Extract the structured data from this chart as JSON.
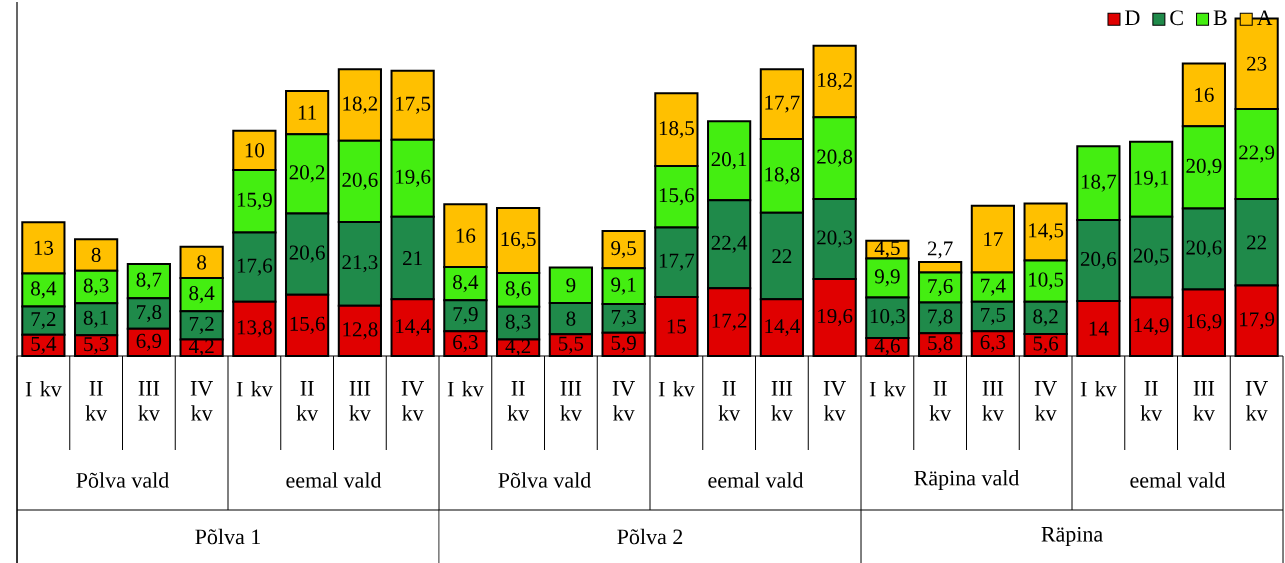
{
  "chart_data": {
    "type": "bar",
    "stacked": true,
    "legend": "top right",
    "tick_labels": "x",
    "ylim": [
      0,
      90
    ],
    "categories": [
      "I kv",
      "II kv",
      "III kv",
      "IV kv",
      "I kv",
      "II kv",
      "III kv",
      "IV kv",
      "I kv",
      "II kv",
      "III kv",
      "IV kv",
      "I kv",
      "II kv",
      "III kv",
      "IV kv",
      "I kv",
      "II kv",
      "III kv",
      "IV kv",
      "I kv",
      "II kv",
      "III kv",
      "IV kv"
    ],
    "annotations": [
      "Põlva vald",
      "eemal vald",
      "Põlva vald",
      "eemal vald",
      "Räpina vald",
      "eemal vald",
      "Põlva 1",
      "Põlva 2",
      "Räpina"
    ],
    "series": [
      {
        "name": "D",
        "color": "#e00000",
        "values": [
          5.4,
          5.3,
          6.9,
          4.2,
          13.8,
          15.6,
          12.8,
          14.4,
          6.3,
          4.2,
          5.5,
          5.9,
          15,
          17.2,
          14.4,
          19.6,
          4.6,
          5.8,
          6.3,
          5.6,
          14,
          14.9,
          16.9,
          17.9
        ],
        "value_labels": [
          "5,4",
          "5,3",
          "6,9",
          "4,2",
          "13,8",
          "15,6",
          "12,8",
          "14,4",
          "6,3",
          "4,2",
          "5,5",
          "5,9",
          "15",
          "17,2",
          "14,4",
          "19,6",
          "4,6",
          "5,8",
          "6,3",
          "5,6",
          "14",
          "14,9",
          "16,9",
          "17,9"
        ]
      },
      {
        "name": "C",
        "color": "#1f8a4a",
        "values": [
          7.2,
          8.1,
          7.8,
          7.2,
          17.6,
          20.6,
          21.3,
          21,
          7.9,
          8.3,
          8,
          7.3,
          17.7,
          22.4,
          22,
          20.3,
          10.3,
          7.8,
          7.5,
          8.2,
          20.6,
          20.5,
          20.6,
          22
        ],
        "value_labels": [
          "7,2",
          "8,1",
          "7,8",
          "7,2",
          "17,6",
          "20,6",
          "21,3",
          "21",
          "7,9",
          "8,3",
          "8",
          "7,3",
          "17,7",
          "22,4",
          "22",
          "20,3",
          "10,3",
          "7,8",
          "7,5",
          "8,2",
          "20,6",
          "20,5",
          "20,6",
          "22"
        ]
      },
      {
        "name": "B",
        "color": "#44ee11",
        "values": [
          8.4,
          8.3,
          8.7,
          8.4,
          15.9,
          20.2,
          20.6,
          19.6,
          8.4,
          8.6,
          9,
          9.1,
          15.6,
          20.1,
          18.8,
          20.8,
          9.9,
          7.6,
          7.4,
          10.5,
          18.7,
          19.1,
          20.9,
          22.9
        ],
        "value_labels": [
          "8,4",
          "8,3",
          "8,7",
          "8,4",
          "15,9",
          "20,2",
          "20,6",
          "19,6",
          "8,4",
          "8,6",
          "9",
          "9,1",
          "15,6",
          "20,1",
          "18,8",
          "20,8",
          "9,9",
          "7,6",
          "7,4",
          "10,5",
          "18,7",
          "19,1",
          "20,9",
          "22,9"
        ]
      },
      {
        "name": "A",
        "color": "#ffc000",
        "values": [
          13,
          8,
          null,
          8,
          10,
          11,
          18.2,
          17.5,
          16,
          16.5,
          null,
          9.5,
          18.5,
          null,
          17.7,
          18.2,
          4.5,
          2.7,
          17,
          14.5,
          null,
          null,
          16,
          23
        ],
        "value_labels": [
          "13",
          "8",
          null,
          "8",
          "10",
          "11",
          "18,2",
          "17,5",
          "16",
          "16,5",
          null,
          "9,5",
          "18,5",
          null,
          "17,7",
          "18,2",
          "4,5",
          "2,7",
          "17",
          "14,5",
          null,
          null,
          "16",
          "23"
        ]
      }
    ]
  }
}
